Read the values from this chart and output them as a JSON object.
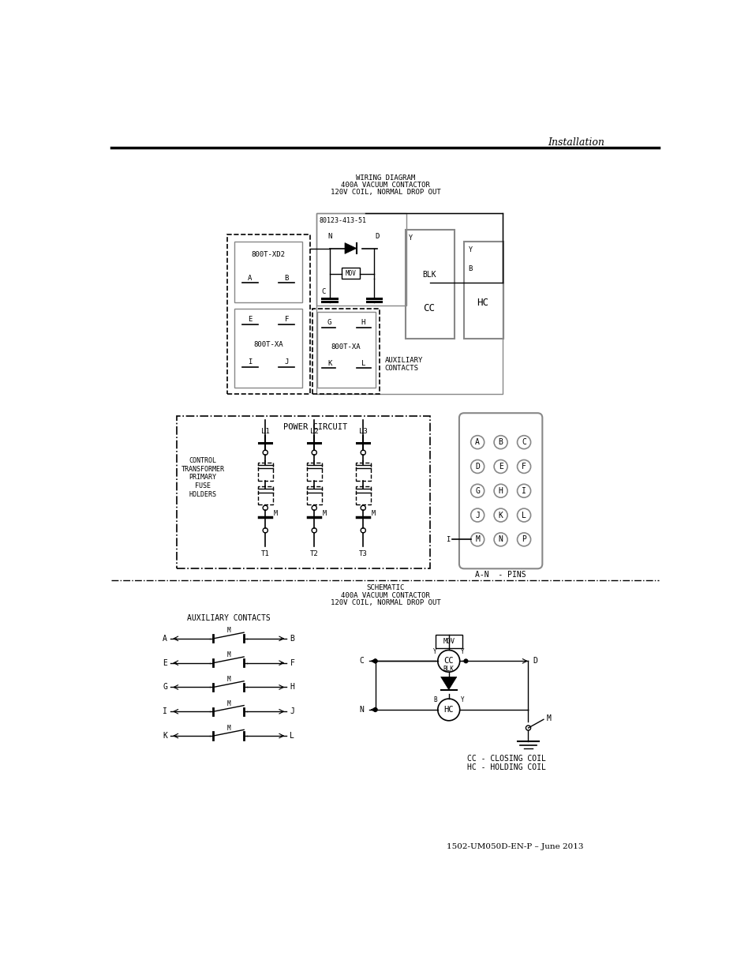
{
  "title_header": "Installation",
  "wiring_title": [
    "WIRING DIAGRAM",
    "400A VACUUM CONTACTOR",
    "120V COIL, NORMAL DROP OUT"
  ],
  "schematic_title": [
    "SCHEMATIC",
    "400A VACUUM CONTACTOR",
    "120V COIL, NORMAL DROP OUT"
  ],
  "footer": "1502-UM050D-EN-P – June 2013",
  "bg_color": "#ffffff",
  "line_color": "#000000",
  "gray_color": "#888888"
}
